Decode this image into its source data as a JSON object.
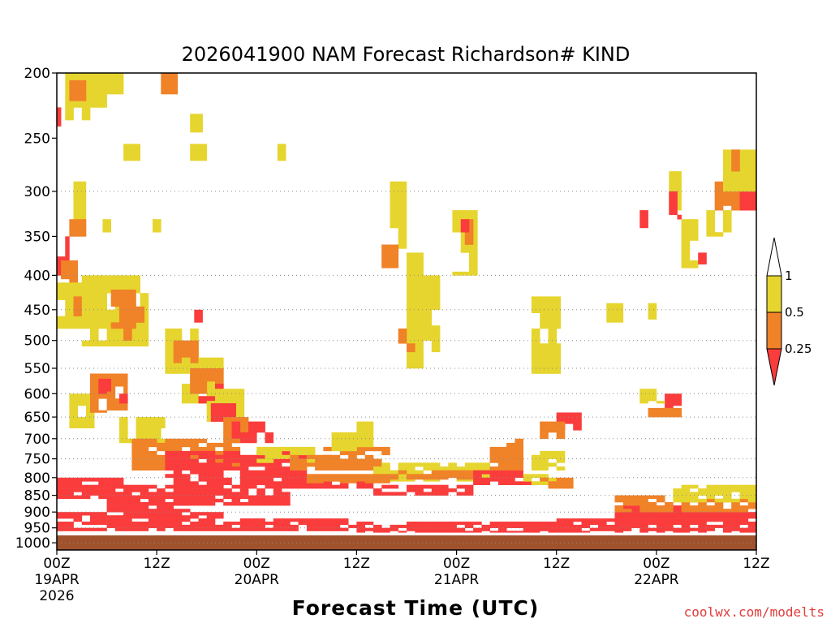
{
  "chart_data": {
    "type": "heatmap",
    "title": "2026041900 NAM Forecast Richardson# KIND",
    "xlabel": "Forecast Time (UTC)",
    "ylabel": "",
    "credit": "coolwx.com/modelts",
    "y_axis": {
      "scale": "log-pressure",
      "range": [
        1025,
        200
      ],
      "ticks": [
        "200",
        "250",
        "300",
        "350",
        "400",
        "450",
        "500",
        "550",
        "600",
        "650",
        "700",
        "750",
        "800",
        "850",
        "900",
        "950",
        "1000"
      ],
      "gridlines_at": [
        300,
        400,
        450,
        500,
        550,
        600,
        650,
        700,
        750,
        800,
        850,
        900,
        950,
        1000
      ]
    },
    "x_axis": {
      "range_hours": [
        0,
        84
      ],
      "ticks": [
        {
          "hour": 0,
          "label": "00Z",
          "date": "19APR",
          "year": "2026"
        },
        {
          "hour": 12,
          "label": "12Z",
          "date": "",
          "year": ""
        },
        {
          "hour": 24,
          "label": "00Z",
          "date": "20APR",
          "year": ""
        },
        {
          "hour": 36,
          "label": "12Z",
          "date": "",
          "year": ""
        },
        {
          "hour": 48,
          "label": "00Z",
          "date": "21APR",
          "year": ""
        },
        {
          "hour": 60,
          "label": "12Z",
          "date": "",
          "year": ""
        },
        {
          "hour": 72,
          "label": "00Z",
          "date": "22APR",
          "year": ""
        },
        {
          "hour": 84,
          "label": "12Z",
          "date": "",
          "year": ""
        }
      ]
    },
    "legend": {
      "placement": "right",
      "levels": [
        "1",
        "0.5",
        "0.25"
      ],
      "bins": [
        {
          "range": "> 1",
          "color": "#ffffff"
        },
        {
          "range": "0.5 - 1",
          "color": "#e6d52e"
        },
        {
          "range": "0.25 - 0.5",
          "color": "#f08228"
        },
        {
          "range": "< 0.25",
          "color": "#fa3c3c"
        }
      ]
    },
    "ground_color": "#a0522d",
    "cell": {
      "dt_hours": 1,
      "dp_hpa_near_surface": 10
    },
    "regions": [
      {
        "category": "yellow",
        "t": [
          1,
          6
        ],
        "p": [
          200,
          235
        ]
      },
      {
        "category": "orange",
        "t": [
          1.5,
          3.5
        ],
        "p": [
          205,
          220
        ]
      },
      {
        "category": "yellow",
        "t": [
          6,
          8
        ],
        "p": [
          200,
          215
        ]
      },
      {
        "category": "orange",
        "t": [
          12.5,
          14.5
        ],
        "p": [
          200,
          215
        ]
      },
      {
        "category": "yellow",
        "t": [
          8,
          10
        ],
        "p": [
          255,
          270
        ]
      },
      {
        "category": "yellow",
        "t": [
          14,
          18
        ],
        "p": [
          255,
          270
        ]
      },
      {
        "category": "yellow",
        "t": [
          16,
          17.5
        ],
        "p": [
          230,
          245
        ]
      },
      {
        "category": "yellow",
        "t": [
          26.5,
          27.5
        ],
        "p": [
          255,
          270
        ]
      },
      {
        "category": "red",
        "t": [
          0,
          0.5
        ],
        "p": [
          225,
          240
        ]
      },
      {
        "category": "yellow",
        "t": [
          1,
          3.5
        ],
        "p": [
          290,
          330
        ]
      },
      {
        "category": "orange",
        "t": [
          1.5,
          3.5
        ],
        "p": [
          330,
          350
        ]
      },
      {
        "category": "yellow",
        "t": [
          5.5,
          6.5
        ],
        "p": [
          330,
          345
        ]
      },
      {
        "category": "yellow",
        "t": [
          11.5,
          12.5
        ],
        "p": [
          330,
          345
        ]
      },
      {
        "category": "red",
        "t": [
          0,
          1.5
        ],
        "p": [
          350,
          400
        ]
      },
      {
        "category": "orange",
        "t": [
          0.5,
          2.5
        ],
        "p": [
          380,
          415
        ]
      },
      {
        "category": "yellow",
        "t": [
          0,
          6
        ],
        "p": [
          410,
          480
        ]
      },
      {
        "category": "orange",
        "t": [
          2,
          5
        ],
        "p": [
          430,
          460
        ]
      },
      {
        "category": "yellow",
        "t": [
          3,
          11
        ],
        "p": [
          400,
          510
        ]
      },
      {
        "category": "orange",
        "t": [
          6.5,
          10.5
        ],
        "p": [
          420,
          480
        ]
      },
      {
        "category": "orange",
        "t": [
          8,
          9.5
        ],
        "p": [
          480,
          500
        ]
      },
      {
        "category": "red",
        "t": [
          16.5,
          17.5
        ],
        "p": [
          450,
          470
        ]
      },
      {
        "category": "yellow",
        "t": [
          13,
          17
        ],
        "p": [
          480,
          560
        ]
      },
      {
        "category": "orange",
        "t": [
          14,
          17
        ],
        "p": [
          500,
          540
        ]
      },
      {
        "category": "yellow",
        "t": [
          15,
          20
        ],
        "p": [
          530,
          620
        ]
      },
      {
        "category": "orange",
        "t": [
          16,
          20
        ],
        "p": [
          550,
          600
        ]
      },
      {
        "category": "red",
        "t": [
          17,
          20
        ],
        "p": [
          580,
          620
        ]
      },
      {
        "category": "yellow",
        "t": [
          18,
          22.5
        ],
        "p": [
          590,
          660
        ]
      },
      {
        "category": "red",
        "t": [
          18.5,
          21.5
        ],
        "p": [
          620,
          660
        ]
      },
      {
        "category": "orange",
        "t": [
          20,
          24
        ],
        "p": [
          650,
          700
        ]
      },
      {
        "category": "red",
        "t": [
          21,
          26
        ],
        "p": [
          660,
          710
        ]
      },
      {
        "category": "yellow",
        "t": [
          1.5,
          4.5
        ],
        "p": [
          600,
          680
        ]
      },
      {
        "category": "orange",
        "t": [
          4,
          8.5
        ],
        "p": [
          560,
          640
        ]
      },
      {
        "category": "red",
        "t": [
          5,
          6.5
        ],
        "p": [
          570,
          600
        ]
      },
      {
        "category": "red",
        "t": [
          7.5,
          8.5
        ],
        "p": [
          600,
          620
        ]
      },
      {
        "category": "yellow",
        "t": [
          7.5,
          13
        ],
        "p": [
          650,
          710
        ]
      },
      {
        "category": "orange",
        "t": [
          9,
          22
        ],
        "p": [
          700,
          780
        ]
      },
      {
        "category": "red",
        "t": [
          13,
          30
        ],
        "p": [
          730,
          800
        ]
      },
      {
        "category": "yellow",
        "t": [
          24,
          31
        ],
        "p": [
          720,
          760
        ]
      },
      {
        "category": "orange",
        "t": [
          28,
          34
        ],
        "p": [
          740,
          780
        ]
      },
      {
        "category": "orange",
        "t": [
          32,
          40
        ],
        "p": [
          720,
          780
        ]
      },
      {
        "category": "yellow",
        "t": [
          33,
          38
        ],
        "p": [
          660,
          730
        ]
      },
      {
        "category": "yellow",
        "t": [
          38,
          52
        ],
        "p": [
          760,
          810
        ]
      },
      {
        "category": "orange",
        "t": [
          40,
          50
        ],
        "p": [
          780,
          805
        ]
      },
      {
        "category": "red",
        "t": [
          0,
          8
        ],
        "p": [
          800,
          860
        ]
      },
      {
        "category": "red",
        "t": [
          6,
          16
        ],
        "p": [
          820,
          900
        ]
      },
      {
        "category": "red",
        "t": [
          14,
          28
        ],
        "p": [
          800,
          880
        ]
      },
      {
        "category": "red",
        "t": [
          28,
          38
        ],
        "p": [
          800,
          830
        ]
      },
      {
        "category": "orange",
        "t": [
          30,
          40
        ],
        "p": [
          790,
          815
        ]
      },
      {
        "category": "red",
        "t": [
          38,
          50
        ],
        "p": [
          820,
          850
        ]
      },
      {
        "category": "red",
        "t": [
          50,
          57
        ],
        "p": [
          780,
          820
        ]
      },
      {
        "category": "orange",
        "t": [
          52,
          56
        ],
        "p": [
          720,
          780
        ]
      },
      {
        "category": "red",
        "t": [
          0,
          20
        ],
        "p": [
          900,
          960
        ]
      },
      {
        "category": "red",
        "t": [
          20,
          36
        ],
        "p": [
          920,
          960
        ]
      },
      {
        "category": "red",
        "t": [
          36,
          58
        ],
        "p": [
          930,
          965
        ]
      },
      {
        "category": "red",
        "t": [
          58,
          67
        ],
        "p": [
          920,
          965
        ]
      },
      {
        "category": "red",
        "t": [
          67,
          75
        ],
        "p": [
          880,
          965
        ]
      },
      {
        "category": "red",
        "t": [
          75,
          84
        ],
        "p": [
          900,
          965
        ]
      },
      {
        "category": "orange",
        "t": [
          67,
          74
        ],
        "p": [
          850,
          900
        ]
      },
      {
        "category": "orange",
        "t": [
          75,
          84
        ],
        "p": [
          860,
          900
        ]
      },
      {
        "category": "yellow",
        "t": [
          74,
          84
        ],
        "p": [
          820,
          870
        ]
      },
      {
        "category": "yellow",
        "t": [
          56,
          60
        ],
        "p": [
          790,
          820
        ]
      },
      {
        "category": "orange",
        "t": [
          58,
          62
        ],
        "p": [
          800,
          830
        ]
      },
      {
        "category": "red",
        "t": [
          60,
          63
        ],
        "p": [
          640,
          680
        ]
      },
      {
        "category": "orange",
        "t": [
          58,
          61
        ],
        "p": [
          660,
          700
        ]
      },
      {
        "category": "yellow",
        "t": [
          57,
          61
        ],
        "p": [
          730,
          780
        ]
      },
      {
        "category": "red",
        "t": [
          73,
          75
        ],
        "p": [
          600,
          630
        ]
      },
      {
        "category": "orange",
        "t": [
          71,
          75
        ],
        "p": [
          630,
          650
        ]
      },
      {
        "category": "yellow",
        "t": [
          70,
          73
        ],
        "p": [
          590,
          620
        ]
      },
      {
        "category": "orange",
        "t": [
          54,
          56
        ],
        "p": [
          700,
          760
        ]
      },
      {
        "category": "yellow",
        "t": [
          40,
          42
        ],
        "p": [
          290,
          370
        ]
      },
      {
        "category": "orange",
        "t": [
          39,
          41
        ],
        "p": [
          360,
          390
        ]
      },
      {
        "category": "yellow",
        "t": [
          42,
          44
        ],
        "p": [
          370,
          550
        ]
      },
      {
        "category": "orange",
        "t": [
          41,
          43
        ],
        "p": [
          480,
          520
        ]
      },
      {
        "category": "yellow",
        "t": [
          44,
          46
        ],
        "p": [
          400,
          520
        ]
      },
      {
        "category": "yellow",
        "t": [
          47.5,
          50.5
        ],
        "p": [
          320,
          400
        ]
      },
      {
        "category": "orange",
        "t": [
          48,
          50
        ],
        "p": [
          330,
          360
        ]
      },
      {
        "category": "red",
        "t": [
          48.5,
          49.5
        ],
        "p": [
          330,
          345
        ]
      },
      {
        "category": "yellow",
        "t": [
          57,
          60.5
        ],
        "p": [
          430,
          560
        ]
      },
      {
        "category": "orange",
        "t": [
          58,
          59
        ],
        "p": [
          430,
          450
        ]
      },
      {
        "category": "yellow",
        "t": [
          66,
          68
        ],
        "p": [
          440,
          470
        ]
      },
      {
        "category": "yellow",
        "t": [
          71,
          72
        ],
        "p": [
          440,
          470
        ]
      },
      {
        "category": "yellow",
        "t": [
          73.5,
          75
        ],
        "p": [
          280,
          320
        ]
      },
      {
        "category": "red",
        "t": [
          73.5,
          75
        ],
        "p": [
          300,
          330
        ]
      },
      {
        "category": "orange",
        "t": [
          74,
          76
        ],
        "p": [
          330,
          350
        ]
      },
      {
        "category": "yellow",
        "t": [
          75,
          77
        ],
        "p": [
          330,
          390
        ]
      },
      {
        "category": "red",
        "t": [
          77,
          78
        ],
        "p": [
          370,
          385
        ]
      },
      {
        "category": "yellow",
        "t": [
          78,
          81
        ],
        "p": [
          320,
          350
        ]
      },
      {
        "category": "orange",
        "t": [
          79,
          82
        ],
        "p": [
          290,
          320
        ]
      },
      {
        "category": "red",
        "t": [
          82,
          84
        ],
        "p": [
          290,
          320
        ]
      },
      {
        "category": "yellow",
        "t": [
          80,
          84
        ],
        "p": [
          260,
          300
        ]
      },
      {
        "category": "orange",
        "t": [
          81,
          82
        ],
        "p": [
          260,
          280
        ]
      },
      {
        "category": "red",
        "t": [
          70,
          71
        ],
        "p": [
          320,
          340
        ]
      }
    ]
  }
}
